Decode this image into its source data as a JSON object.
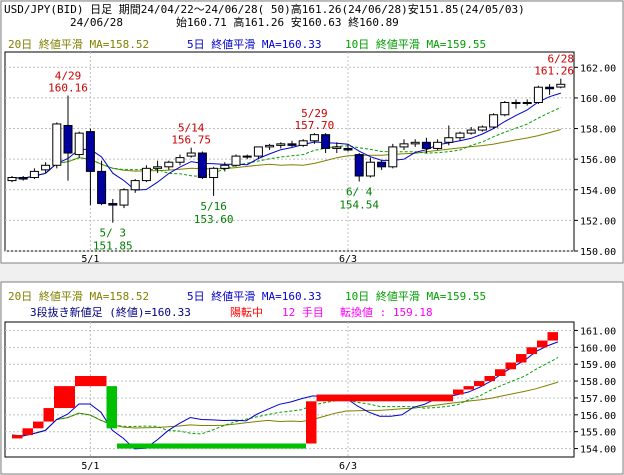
{
  "header": {
    "line1": "USD/JPY(BID) 日足 期間24/04/22～24/06/28( 50)高161.26(24/06/28)安151.85(24/05/03)",
    "date": "24/06/28",
    "ohlc": "始160.71 高161.26 安160.63 終160.89"
  },
  "colors": {
    "ma20": "#808000",
    "ma5": "#0000cc",
    "ma10": "#00a000",
    "up": "#ffffff",
    "down": "#0000a0",
    "high_label": "#cc0000",
    "low_label": "#008000",
    "sanbon_up": "#ff0000",
    "sanbon_down": "#00c000"
  },
  "legend": {
    "ma20": "20日 終値平滑 MA=158.52",
    "ma5": "5日 終値平滑 MA=160.33",
    "ma10": "10日 終値平滑 MA=159.55"
  },
  "lower_info": {
    "prefix": "3段抜き新値足 (終値)=160.33",
    "state": "陽転中",
    "count": "12 手目",
    "turn": "転換値 : 159.18"
  },
  "chart_data": [
    {
      "type": "candlestick",
      "title": "USD/JPY(BID) 日足",
      "x_ticks": [
        {
          "index": 7,
          "label": "5/1"
        },
        {
          "index": 30,
          "label": "6/3"
        }
      ],
      "ylim": [
        150,
        163
      ],
      "y_ticks": [
        150,
        152,
        154,
        156,
        158,
        160,
        162
      ],
      "candles": [
        {
          "date": "04/22",
          "o": 154.6,
          "h": 154.9,
          "l": 154.5,
          "c": 154.8
        },
        {
          "date": "04/23",
          "o": 154.8,
          "h": 154.9,
          "l": 154.6,
          "c": 154.7
        },
        {
          "date": "04/24",
          "o": 154.8,
          "h": 155.4,
          "l": 154.7,
          "c": 155.2
        },
        {
          "date": "04/25",
          "o": 155.3,
          "h": 155.8,
          "l": 155.1,
          "c": 155.6
        },
        {
          "date": "04/26",
          "o": 155.6,
          "h": 158.4,
          "l": 155.4,
          "c": 158.3
        },
        {
          "date": "04/29",
          "o": 158.2,
          "h": 160.16,
          "l": 154.6,
          "c": 156.4
        },
        {
          "date": "04/30",
          "o": 156.3,
          "h": 157.8,
          "l": 156.1,
          "c": 157.7
        },
        {
          "date": "05/01",
          "o": 157.8,
          "h": 158.0,
          "l": 153.0,
          "c": 155.2
        },
        {
          "date": "05/02",
          "o": 155.2,
          "h": 155.9,
          "l": 153.0,
          "c": 153.1
        },
        {
          "date": "05/03",
          "o": 153.1,
          "h": 153.4,
          "l": 151.85,
          "c": 153.0
        },
        {
          "date": "05/06",
          "o": 153.0,
          "h": 154.1,
          "l": 152.8,
          "c": 154.0
        },
        {
          "date": "05/07",
          "o": 154.0,
          "h": 154.7,
          "l": 153.8,
          "c": 154.6
        },
        {
          "date": "05/08",
          "o": 154.6,
          "h": 155.6,
          "l": 154.5,
          "c": 155.4
        },
        {
          "date": "05/09",
          "o": 155.4,
          "h": 155.9,
          "l": 155.1,
          "c": 155.5
        },
        {
          "date": "05/10",
          "o": 155.5,
          "h": 155.9,
          "l": 155.3,
          "c": 155.8
        },
        {
          "date": "05/13",
          "o": 155.8,
          "h": 156.3,
          "l": 155.6,
          "c": 156.1
        },
        {
          "date": "05/14",
          "o": 156.2,
          "h": 156.75,
          "l": 156.1,
          "c": 156.4
        },
        {
          "date": "05/15",
          "o": 156.4,
          "h": 156.5,
          "l": 154.7,
          "c": 154.8
        },
        {
          "date": "05/16",
          "o": 154.8,
          "h": 155.5,
          "l": 153.6,
          "c": 155.4
        },
        {
          "date": "05/17",
          "o": 155.4,
          "h": 155.8,
          "l": 155.2,
          "c": 155.6
        },
        {
          "date": "05/20",
          "o": 155.6,
          "h": 156.3,
          "l": 155.5,
          "c": 156.2
        },
        {
          "date": "05/21",
          "o": 156.2,
          "h": 156.3,
          "l": 156.0,
          "c": 156.2
        },
        {
          "date": "05/22",
          "o": 156.2,
          "h": 156.8,
          "l": 156.0,
          "c": 156.8
        },
        {
          "date": "05/23",
          "o": 156.8,
          "h": 157.0,
          "l": 156.6,
          "c": 156.9
        },
        {
          "date": "05/24",
          "o": 156.9,
          "h": 157.1,
          "l": 156.7,
          "c": 157.0
        },
        {
          "date": "05/27",
          "o": 157.0,
          "h": 157.2,
          "l": 156.8,
          "c": 156.9
        },
        {
          "date": "05/28",
          "o": 156.9,
          "h": 157.3,
          "l": 156.8,
          "c": 157.2
        },
        {
          "date": "05/29",
          "o": 157.2,
          "h": 157.7,
          "l": 157.0,
          "c": 157.6
        },
        {
          "date": "05/30",
          "o": 157.6,
          "h": 157.7,
          "l": 156.4,
          "c": 156.7
        },
        {
          "date": "05/31",
          "o": 156.7,
          "h": 157.1,
          "l": 156.4,
          "c": 156.8
        },
        {
          "date": "06/03",
          "o": 156.7,
          "h": 157.0,
          "l": 156.5,
          "c": 156.6
        },
        {
          "date": "06/04",
          "o": 156.3,
          "h": 156.4,
          "l": 154.54,
          "c": 154.9
        },
        {
          "date": "06/05",
          "o": 154.9,
          "h": 156.1,
          "l": 154.8,
          "c": 155.8
        },
        {
          "date": "06/06",
          "o": 155.8,
          "h": 155.9,
          "l": 155.3,
          "c": 155.5
        },
        {
          "date": "06/07",
          "o": 155.5,
          "h": 157.0,
          "l": 155.4,
          "c": 156.8
        },
        {
          "date": "06/10",
          "o": 156.8,
          "h": 157.3,
          "l": 156.6,
          "c": 157.0
        },
        {
          "date": "06/11",
          "o": 157.0,
          "h": 157.3,
          "l": 156.8,
          "c": 157.1
        },
        {
          "date": "06/12",
          "o": 157.1,
          "h": 157.4,
          "l": 156.4,
          "c": 156.7
        },
        {
          "date": "06/13",
          "o": 156.7,
          "h": 157.3,
          "l": 156.6,
          "c": 157.1
        },
        {
          "date": "06/14",
          "o": 157.1,
          "h": 158.2,
          "l": 156.9,
          "c": 157.4
        },
        {
          "date": "06/17",
          "o": 157.4,
          "h": 157.8,
          "l": 157.2,
          "c": 157.7
        },
        {
          "date": "06/18",
          "o": 157.7,
          "h": 158.1,
          "l": 157.6,
          "c": 157.9
        },
        {
          "date": "06/19",
          "o": 157.9,
          "h": 158.2,
          "l": 157.8,
          "c": 158.1
        },
        {
          "date": "06/20",
          "o": 158.1,
          "h": 159.0,
          "l": 158.0,
          "c": 158.9
        },
        {
          "date": "06/21",
          "o": 158.9,
          "h": 159.8,
          "l": 158.8,
          "c": 159.7
        },
        {
          "date": "06/24",
          "o": 159.7,
          "h": 159.9,
          "l": 159.3,
          "c": 159.7
        },
        {
          "date": "06/25",
          "o": 159.7,
          "h": 159.9,
          "l": 159.5,
          "c": 159.7
        },
        {
          "date": "06/26",
          "o": 159.7,
          "h": 160.8,
          "l": 159.6,
          "c": 160.7
        },
        {
          "date": "06/27",
          "o": 160.7,
          "h": 160.9,
          "l": 160.2,
          "c": 160.6
        },
        {
          "date": "06/28",
          "o": 160.71,
          "h": 161.26,
          "l": 160.63,
          "c": 160.89
        }
      ],
      "annotations": [
        {
          "index": 5,
          "kind": "high",
          "date": "4/29",
          "value": "160.16"
        },
        {
          "index": 9,
          "kind": "low",
          "date": "5/ 3",
          "value": "151.85"
        },
        {
          "index": 16,
          "kind": "high",
          "date": "5/14",
          "value": "156.75"
        },
        {
          "index": 18,
          "kind": "low",
          "date": "5/16",
          "value": "153.60"
        },
        {
          "index": 27,
          "kind": "high",
          "date": "5/29",
          "value": "157.70"
        },
        {
          "index": 31,
          "kind": "low",
          "date": "6/ 4",
          "value": "154.54"
        },
        {
          "index": 49,
          "kind": "high",
          "date": "6/28",
          "value": "161.26"
        }
      ]
    },
    {
      "type": "sanbon_shinnei_ashi",
      "x_ticks": [
        {
          "index": 7,
          "label": "5/1"
        },
        {
          "index": 30,
          "label": "6/3"
        }
      ],
      "ylim": [
        153.5,
        161.5
      ],
      "y_ticks": [
        154,
        155,
        156,
        157,
        158,
        159,
        160,
        161
      ],
      "blocks": [
        {
          "from": 0,
          "to": 1,
          "low": 154.6,
          "high": 154.8,
          "dir": "up"
        },
        {
          "from": 1,
          "to": 2,
          "low": 154.8,
          "high": 155.2,
          "dir": "up"
        },
        {
          "from": 2,
          "to": 3,
          "low": 155.2,
          "high": 155.6,
          "dir": "up"
        },
        {
          "from": 3,
          "to": 4,
          "low": 155.6,
          "high": 156.4,
          "dir": "up"
        },
        {
          "from": 4,
          "to": 6,
          "low": 156.4,
          "high": 157.7,
          "dir": "up"
        },
        {
          "from": 6,
          "to": 9,
          "low": 157.7,
          "high": 158.3,
          "dir": "up"
        },
        {
          "from": 9,
          "to": 10,
          "low": 155.2,
          "high": 157.7,
          "dir": "down"
        },
        {
          "from": 10,
          "to": 28,
          "low": 154.0,
          "high": 154.3,
          "dir": "down"
        },
        {
          "from": 28,
          "to": 29,
          "low": 154.3,
          "high": 156.8,
          "dir": "up"
        },
        {
          "from": 29,
          "to": 42,
          "low": 156.8,
          "high": 157.2,
          "dir": "up"
        },
        {
          "from": 42,
          "to": 43,
          "low": 157.2,
          "high": 157.5,
          "dir": "up"
        },
        {
          "from": 43,
          "to": 44,
          "low": 157.5,
          "high": 157.7,
          "dir": "up"
        },
        {
          "from": 44,
          "to": 45,
          "low": 157.7,
          "high": 158.0,
          "dir": "up"
        },
        {
          "from": 45,
          "to": 46,
          "low": 158.0,
          "high": 158.3,
          "dir": "up"
        },
        {
          "from": 46,
          "to": 47,
          "low": 158.3,
          "high": 158.7,
          "dir": "up"
        },
        {
          "from": 47,
          "to": 48,
          "low": 158.7,
          "high": 159.1,
          "dir": "up"
        },
        {
          "from": 48,
          "to": 49,
          "low": 159.1,
          "high": 159.6,
          "dir": "up"
        },
        {
          "from": 49,
          "to": 50,
          "low": 159.6,
          "high": 160.0,
          "dir": "up"
        },
        {
          "from": 50,
          "to": 51,
          "low": 160.0,
          "high": 160.4,
          "dir": "up"
        },
        {
          "from": 51,
          "to": 52,
          "low": 160.4,
          "high": 160.9,
          "dir": "up"
        }
      ]
    }
  ]
}
